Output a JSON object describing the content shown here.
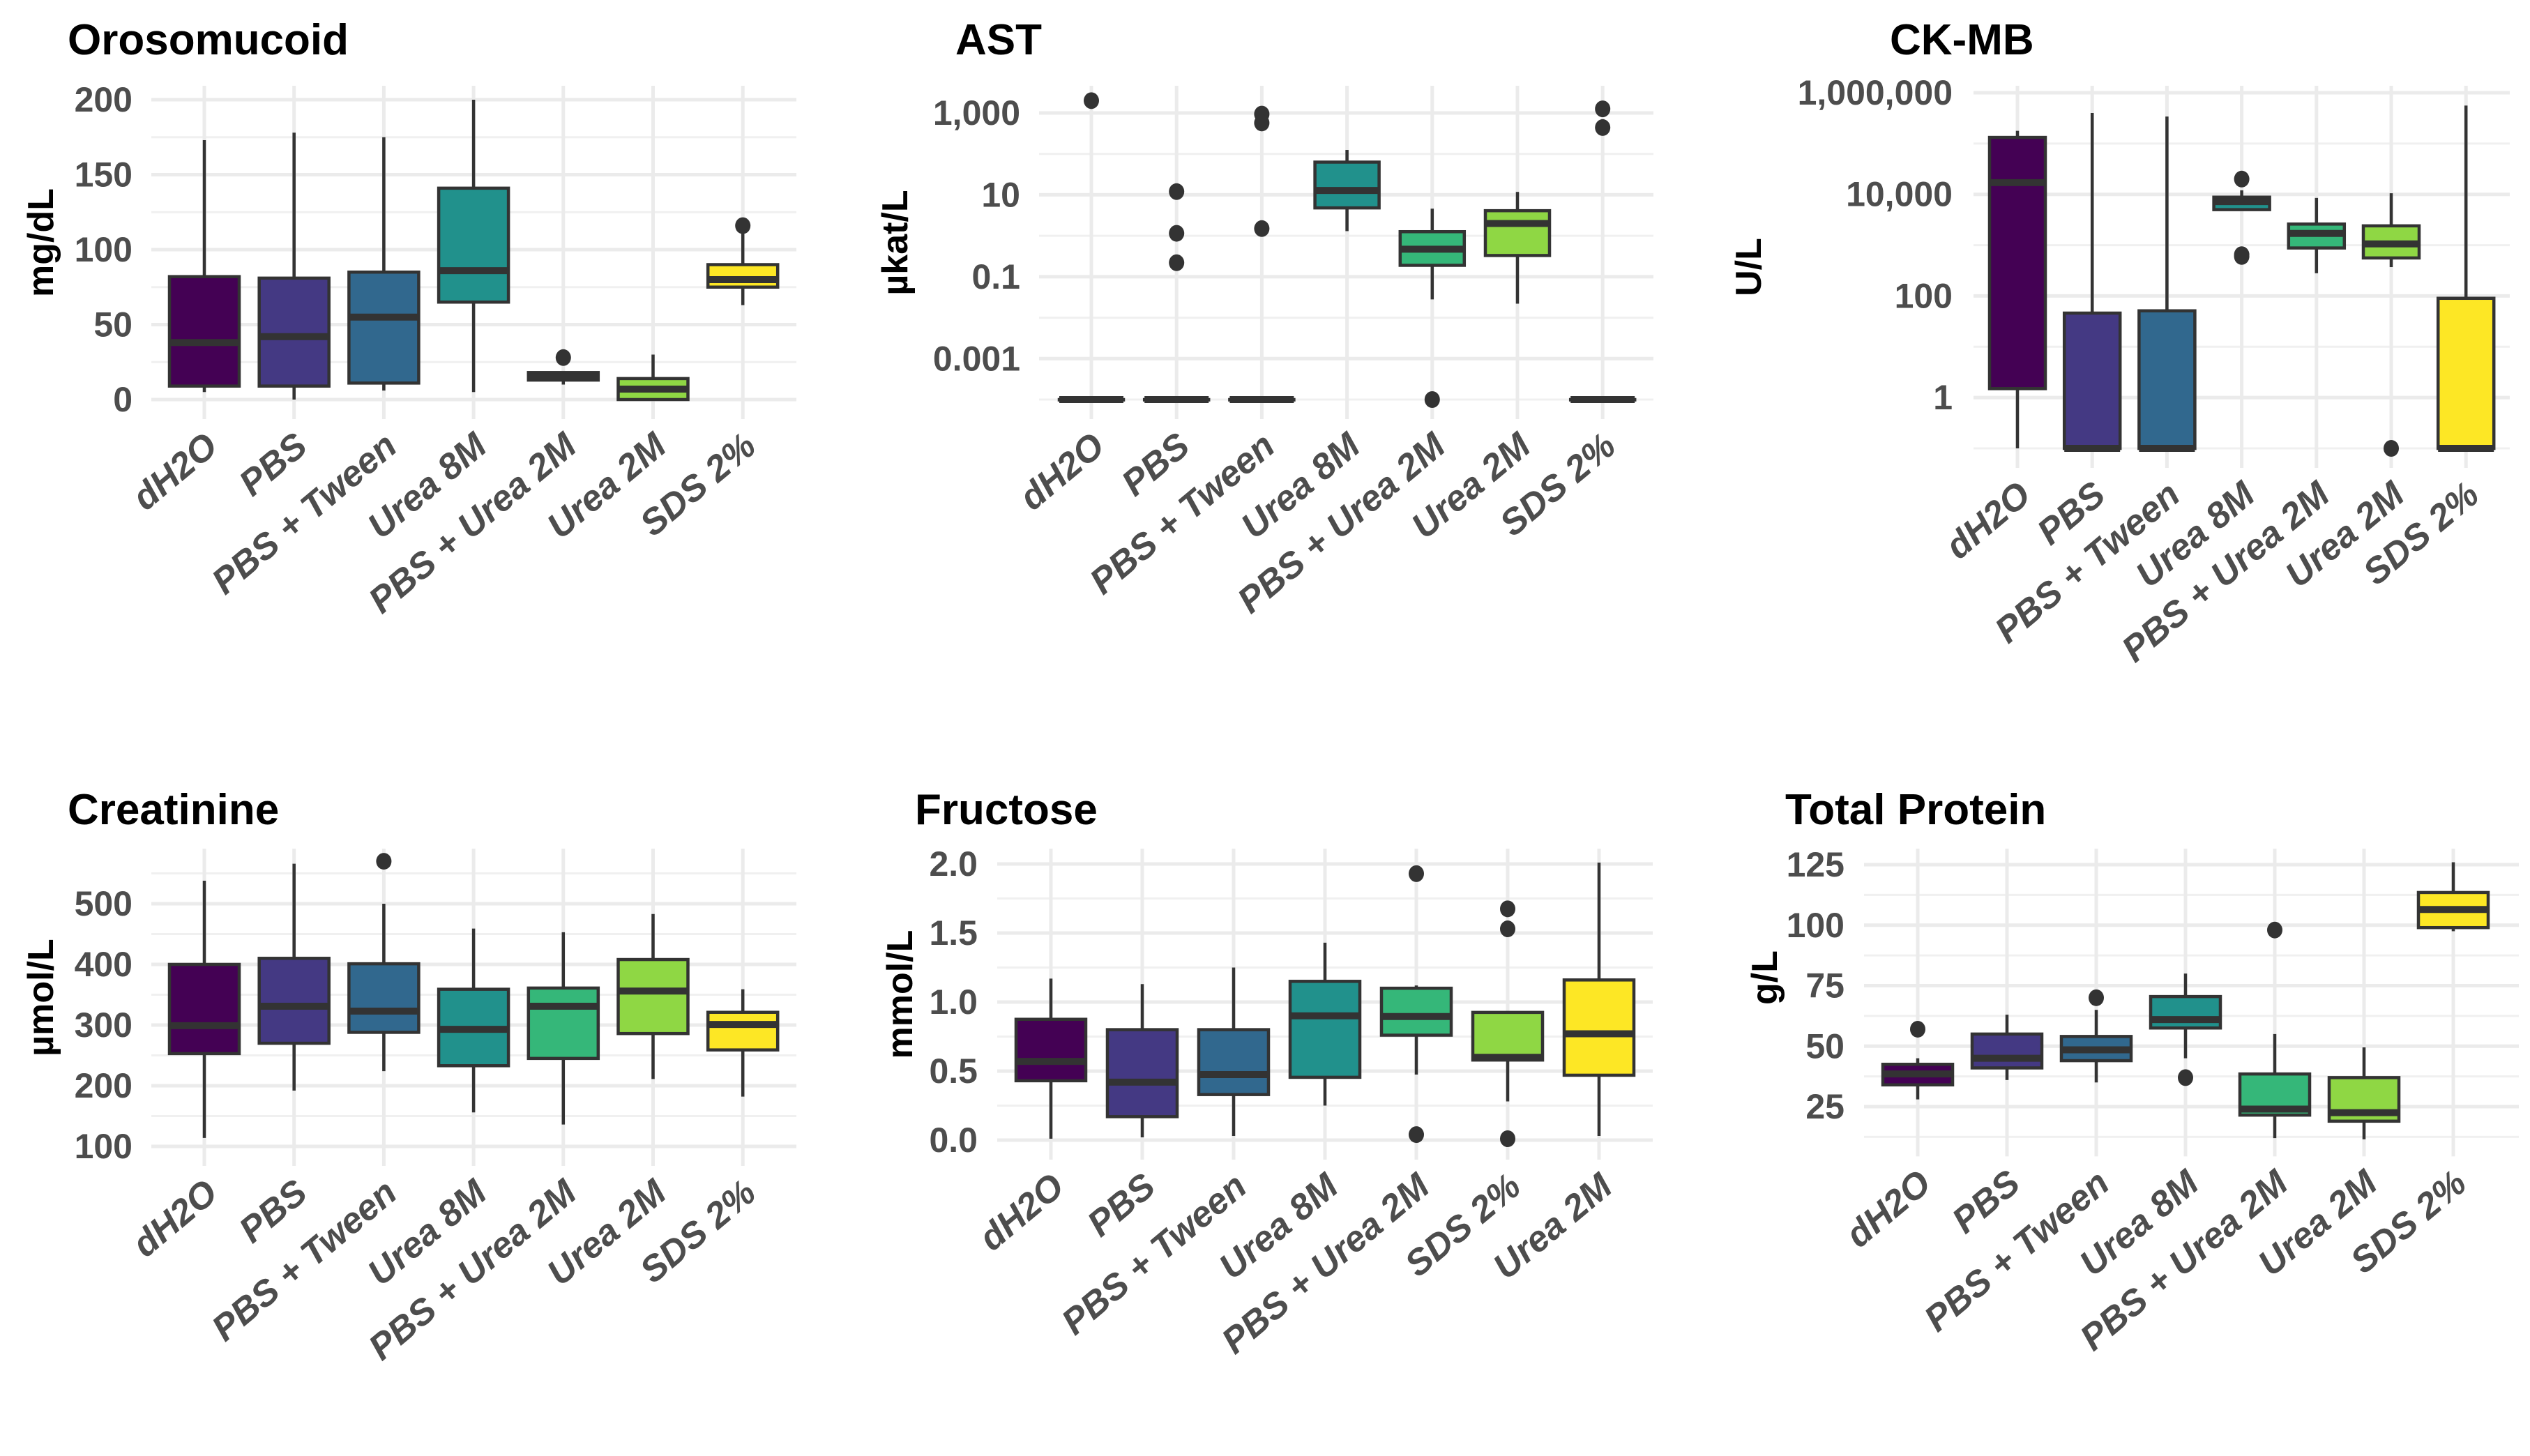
{
  "figure": {
    "palette": [
      "#440154",
      "#443983",
      "#31688E",
      "#21918C",
      "#35B779",
      "#8FD744",
      "#FDE725"
    ]
  },
  "chart_data": [
    {
      "id": "orosomucoid",
      "type": "box",
      "title": "Orosomucoid",
      "ylabel": "mg/dL",
      "xlabel": "",
      "scale": "linear",
      "ylim": [
        -5,
        210
      ],
      "yticks": [
        0,
        50,
        100,
        150,
        200
      ],
      "ytick_labels": [
        "0",
        "50",
        "100",
        "150",
        "200"
      ],
      "minor_ticks": [
        25,
        75,
        125,
        175
      ],
      "grid": true,
      "categories": [
        "dH2O",
        "PBS",
        "PBS + Tween",
        "Urea 8M",
        "PBS + Urea 2M",
        "Urea 2M",
        "SDS 2%"
      ],
      "boxes": [
        {
          "whisker_low": 5,
          "q1": 9,
          "median": 38,
          "q3": 82,
          "whisker_high": 173,
          "outliers": []
        },
        {
          "whisker_low": 0,
          "q1": 9,
          "median": 42,
          "q3": 81,
          "whisker_high": 178,
          "outliers": []
        },
        {
          "whisker_low": 6,
          "q1": 11,
          "median": 55,
          "q3": 85,
          "whisker_high": 175,
          "outliers": []
        },
        {
          "whisker_low": 5,
          "q1": 65,
          "median": 86,
          "q3": 141,
          "whisker_high": 200,
          "outliers": []
        },
        {
          "whisker_low": 10,
          "q1": 13,
          "median": 15,
          "q3": 18,
          "whisker_high": 18,
          "outliers": [
            28
          ]
        },
        {
          "whisker_low": 0,
          "q1": 0,
          "median": 7,
          "q3": 14,
          "whisker_high": 30,
          "outliers": []
        },
        {
          "whisker_low": 63,
          "q1": 75,
          "median": 80,
          "q3": 90,
          "whisker_high": 111,
          "outliers": [
            116
          ]
        }
      ]
    },
    {
      "id": "ast",
      "type": "box",
      "title": "AST",
      "ylabel": "µkat/L",
      "xlabel": "",
      "scale": "log10",
      "ylim": [
        7e-05,
        5000
      ],
      "yticks": [
        0.001,
        0.1,
        10,
        1000
      ],
      "ytick_labels": [
        "0.001",
        "0.1",
        "10",
        "1,000"
      ],
      "minor_ticks": [
        0.0001,
        0.01,
        1,
        100
      ],
      "grid": true,
      "categories": [
        "dH2O",
        "PBS",
        "PBS + Tween",
        "Urea 8M",
        "PBS + Urea 2M",
        "Urea 2M",
        "SDS 2%"
      ],
      "boxes": [
        {
          "whisker_low": 0.0001,
          "q1": 0.0001,
          "median": 0.0001,
          "q3": 0.0001,
          "whisker_high": 0.0001,
          "outliers": [
            2000
          ]
        },
        {
          "whisker_low": 0.0001,
          "q1": 0.0001,
          "median": 0.0001,
          "q3": 0.0001,
          "whisker_high": 0.0001,
          "outliers": [
            12,
            1.15,
            0.22
          ]
        },
        {
          "whisker_low": 0.0001,
          "q1": 0.0001,
          "median": 0.0001,
          "q3": 0.0001,
          "whisker_high": 0.0001,
          "outliers": [
            940,
            570,
            1.5
          ]
        },
        {
          "whisker_low": 1.3,
          "q1": 4.8,
          "median": 12.8,
          "q3": 63,
          "whisker_high": 125,
          "outliers": []
        },
        {
          "whisker_low": 0.028,
          "q1": 0.19,
          "median": 0.47,
          "q3": 1.26,
          "whisker_high": 4.6,
          "outliers": [
            0.0001
          ]
        },
        {
          "whisker_low": 0.022,
          "q1": 0.33,
          "median": 2.0,
          "q3": 4.1,
          "whisker_high": 11.8,
          "outliers": []
        },
        {
          "whisker_low": 0.0001,
          "q1": 0.0001,
          "median": 0.0001,
          "q3": 0.0001,
          "whisker_high": 0.0001,
          "outliers": [
            1260,
            440
          ]
        }
      ]
    },
    {
      "id": "ck-mb",
      "type": "box",
      "title": "CK-MB",
      "ylabel": "U/L",
      "xlabel": "",
      "scale": "log10",
      "ylim": [
        0.07,
        1500000
      ],
      "yticks": [
        1,
        100,
        10000,
        1000000
      ],
      "ytick_labels": [
        "1",
        "100",
        "10,000",
        "1,000,000"
      ],
      "minor_ticks": [
        0.1,
        10,
        1000,
        100000
      ],
      "grid": true,
      "categories": [
        "dH2O",
        "PBS",
        "PBS + Tween",
        "Urea 8M",
        "PBS + Urea 2M",
        "Urea 2M",
        "SDS 2%"
      ],
      "boxes": [
        {
          "whisker_low": 0.1,
          "q1": 1.5,
          "median": 17000,
          "q3": 132000,
          "whisker_high": 178000,
          "outliers": []
        },
        {
          "whisker_low": 0.1,
          "q1": 0.1,
          "median": 0.1,
          "q3": 46,
          "whisker_high": 400000,
          "outliers": []
        },
        {
          "whisker_low": 0.1,
          "q1": 0.1,
          "median": 0.1,
          "q3": 51,
          "whisker_high": 340000,
          "outliers": []
        },
        {
          "whisker_low": 5000,
          "q1": 5000,
          "median": 7200,
          "q3": 8800,
          "whisker_high": 12000,
          "outliers": [
            20000,
            600,
            650
          ]
        },
        {
          "whisker_low": 280,
          "q1": 880,
          "median": 1700,
          "q3": 2600,
          "whisker_high": 8500,
          "outliers": []
        },
        {
          "whisker_low": 370,
          "q1": 560,
          "median": 1060,
          "q3": 2400,
          "whisker_high": 10500,
          "outliers": [
            0.1
          ]
        },
        {
          "whisker_low": 0.1,
          "q1": 0.1,
          "median": 0.1,
          "q3": 90,
          "whisker_high": 560000,
          "outliers": []
        }
      ]
    },
    {
      "id": "creatinine",
      "type": "box",
      "title": "Creatinine",
      "ylabel": "µmol/L",
      "xlabel": "",
      "scale": "linear",
      "ylim": [
        95,
        595
      ],
      "yticks": [
        100,
        200,
        300,
        400,
        500
      ],
      "ytick_labels": [
        "100",
        "200",
        "300",
        "400",
        "500"
      ],
      "minor_ticks": [
        150,
        250,
        350,
        450,
        550
      ],
      "grid": true,
      "categories": [
        "dH2O",
        "PBS",
        "PBS + Tween",
        "Urea 8M",
        "PBS + Urea 2M",
        "Urea 2M",
        "SDS 2%"
      ],
      "boxes": [
        {
          "whisker_low": 114,
          "q1": 253,
          "median": 299,
          "q3": 400,
          "whisker_high": 538,
          "outliers": []
        },
        {
          "whisker_low": 192,
          "q1": 270,
          "median": 331,
          "q3": 410,
          "whisker_high": 566,
          "outliers": []
        },
        {
          "whisker_low": 224,
          "q1": 288,
          "median": 323,
          "q3": 401,
          "whisker_high": 500,
          "outliers": [
            570
          ]
        },
        {
          "whisker_low": 156,
          "q1": 233,
          "median": 293,
          "q3": 359,
          "whisker_high": 459,
          "outliers": []
        },
        {
          "whisker_low": 136,
          "q1": 245,
          "median": 331,
          "q3": 361,
          "whisker_high": 453,
          "outliers": []
        },
        {
          "whisker_low": 211,
          "q1": 286,
          "median": 356,
          "q3": 408,
          "whisker_high": 483,
          "outliers": []
        },
        {
          "whisker_low": 182,
          "q1": 259,
          "median": 301,
          "q3": 321,
          "whisker_high": 359,
          "outliers": []
        }
      ]
    },
    {
      "id": "fructose",
      "type": "box",
      "title": "Fructose",
      "ylabel": "mmol/L",
      "xlabel": "",
      "scale": "linear",
      "ylim": [
        -0.05,
        2.1
      ],
      "yticks": [
        0.0,
        0.5,
        1.0,
        1.5,
        2.0
      ],
      "ytick_labels": [
        "0.0",
        "0.5",
        "1.0",
        "1.5",
        "2.0"
      ],
      "minor_ticks": [
        0.25,
        0.75,
        1.25,
        1.75
      ],
      "grid": true,
      "categories": [
        "dH2O",
        "PBS",
        "PBS + Tween",
        "Urea 8M",
        "PBS + Urea 2M",
        "SDS 2%",
        "Urea 2M"
      ],
      "boxes": [
        {
          "whisker_low": 0.01,
          "q1": 0.43,
          "median": 0.57,
          "q3": 0.875,
          "whisker_high": 1.17,
          "outliers": []
        },
        {
          "whisker_low": 0.02,
          "q1": 0.17,
          "median": 0.42,
          "q3": 0.8,
          "whisker_high": 1.13,
          "outliers": []
        },
        {
          "whisker_low": 0.03,
          "q1": 0.33,
          "median": 0.475,
          "q3": 0.8,
          "whisker_high": 1.25,
          "outliers": []
        },
        {
          "whisker_low": 0.25,
          "q1": 0.455,
          "median": 0.9,
          "q3": 1.15,
          "whisker_high": 1.43,
          "outliers": []
        },
        {
          "whisker_low": 0.475,
          "q1": 0.76,
          "median": 0.895,
          "q3": 1.1,
          "whisker_high": 1.12,
          "outliers": [
            1.93,
            0.04
          ]
        },
        {
          "whisker_low": 0.28,
          "q1": 0.58,
          "median": 0.6,
          "q3": 0.925,
          "whisker_high": 0.925,
          "outliers": [
            1.675,
            1.53,
            0.01
          ]
        },
        {
          "whisker_low": 0.03,
          "q1": 0.47,
          "median": 0.77,
          "q3": 1.16,
          "whisker_high": 2.01,
          "outliers": []
        }
      ]
    },
    {
      "id": "total-protein",
      "type": "box",
      "title": "Total Protein",
      "ylabel": "g/L",
      "xlabel": "",
      "scale": "linear",
      "ylim": [
        8,
        131
      ],
      "yticks": [
        25,
        50,
        75,
        100,
        125
      ],
      "ytick_labels": [
        "25",
        "50",
        "75",
        "100",
        "125"
      ],
      "minor_ticks": [
        12.5,
        37.5,
        62.5,
        87.5,
        112.5
      ],
      "grid": true,
      "categories": [
        "dH2O",
        "PBS",
        "PBS + Tween",
        "Urea 8M",
        "PBS + Urea 2M",
        "Urea 2M",
        "SDS 2%"
      ],
      "boxes": [
        {
          "whisker_low": 28,
          "q1": 34,
          "median": 38.5,
          "q3": 42.5,
          "whisker_high": 45,
          "outliers": [
            57
          ]
        },
        {
          "whisker_low": 36,
          "q1": 41,
          "median": 45,
          "q3": 55,
          "whisker_high": 63,
          "outliers": []
        },
        {
          "whisker_low": 35,
          "q1": 44,
          "median": 48.5,
          "q3": 54,
          "whisker_high": 65,
          "outliers": [
            70
          ]
        },
        {
          "whisker_low": 45,
          "q1": 57.5,
          "median": 61,
          "q3": 70.5,
          "whisker_high": 80,
          "outliers": [
            37
          ]
        },
        {
          "whisker_low": 12,
          "q1": 21.5,
          "median": 24,
          "q3": 38.5,
          "whisker_high": 55,
          "outliers": [
            98
          ]
        },
        {
          "whisker_low": 11.5,
          "q1": 19,
          "median": 22.5,
          "q3": 37,
          "whisker_high": 49.5,
          "outliers": []
        },
        {
          "whisker_low": 97.5,
          "q1": 99,
          "median": 106.5,
          "q3": 113.5,
          "whisker_high": 126,
          "outliers": []
        }
      ]
    }
  ]
}
